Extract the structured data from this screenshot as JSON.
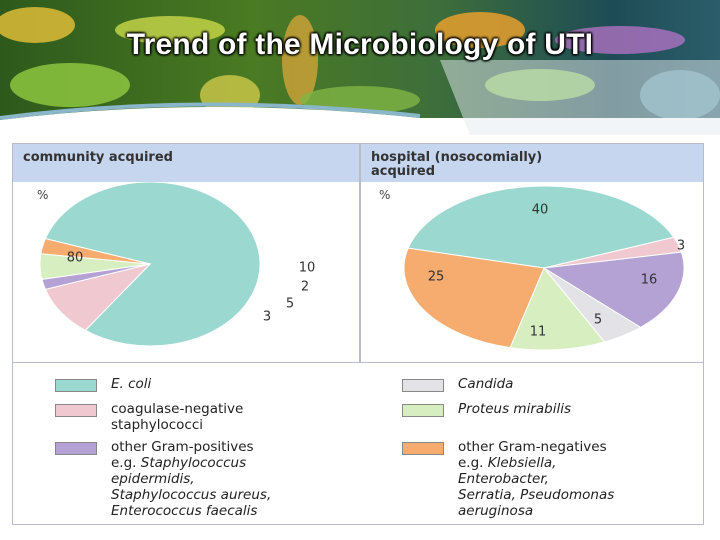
{
  "slide": {
    "title": "Trend of the Microbiology of UTI"
  },
  "colors": {
    "ecoli": "#9bd8cf",
    "coag_neg": "#f0c8cf",
    "other_gram_pos": "#b3a2d3",
    "candida": "#e2e2e7",
    "proteus": "#d7efc0",
    "other_gram_neg": "#f6ab6f",
    "header_bg": "#c6d6ee"
  },
  "chart_data": [
    {
      "type": "pie",
      "title": "community acquired",
      "unit_label": "%",
      "slices": [
        {
          "key": "ecoli",
          "value": 80,
          "label": "80"
        },
        {
          "key": "coag_neg",
          "value": 10,
          "label": "10"
        },
        {
          "key": "other_gram_pos",
          "value": 2,
          "label": "2"
        },
        {
          "key": "proteus",
          "value": 5,
          "label": "5"
        },
        {
          "key": "other_gram_neg",
          "value": 3,
          "label": "3"
        }
      ]
    },
    {
      "type": "pie",
      "title": "hospital (nosocomially) acquired",
      "title_lines": [
        "hospital (nosocomially)",
        "acquired"
      ],
      "unit_label": "%",
      "slices": [
        {
          "key": "ecoli",
          "value": 40,
          "label": "40"
        },
        {
          "key": "coag_neg",
          "value": 3,
          "label": "3"
        },
        {
          "key": "other_gram_pos",
          "value": 16,
          "label": "16"
        },
        {
          "key": "candida",
          "value": 5,
          "label": "5"
        },
        {
          "key": "proteus",
          "value": 11,
          "label": "11"
        },
        {
          "key": "other_gram_neg",
          "value": 25,
          "label": "25"
        }
      ]
    }
  ],
  "legend": [
    {
      "key": "ecoli",
      "lines": [
        "E. coli"
      ],
      "italic": [
        true
      ]
    },
    {
      "key": "coag_neg",
      "lines": [
        "coagulase-negative",
        "staphylococci"
      ],
      "italic": [
        false,
        false
      ]
    },
    {
      "key": "other_gram_pos",
      "lines": [
        "other Gram-positives",
        "e.g. Staphylococcus",
        "epidermidis,",
        "Staphylococcus aureus,",
        "Enterococcus faecalis"
      ],
      "italic": [
        false,
        "partial",
        true,
        true,
        true
      ],
      "lines_text": [
        "other Gram-positives",
        "e.g. ",
        "Staphylococcus"
      ]
    },
    {
      "key": "candida",
      "lines": [
        "Candida"
      ],
      "italic": [
        true
      ]
    },
    {
      "key": "proteus",
      "lines": [
        "Proteus mirabilis"
      ],
      "italic": [
        true
      ]
    },
    {
      "key": "other_gram_neg",
      "lines": [
        "other Gram-negatives",
        "e.g. Klebsiella,",
        "Enterobacter,",
        "Serratia, Pseudomonas",
        "aeruginosa"
      ],
      "italic": [
        false,
        "partial",
        true,
        true,
        true
      ]
    }
  ]
}
